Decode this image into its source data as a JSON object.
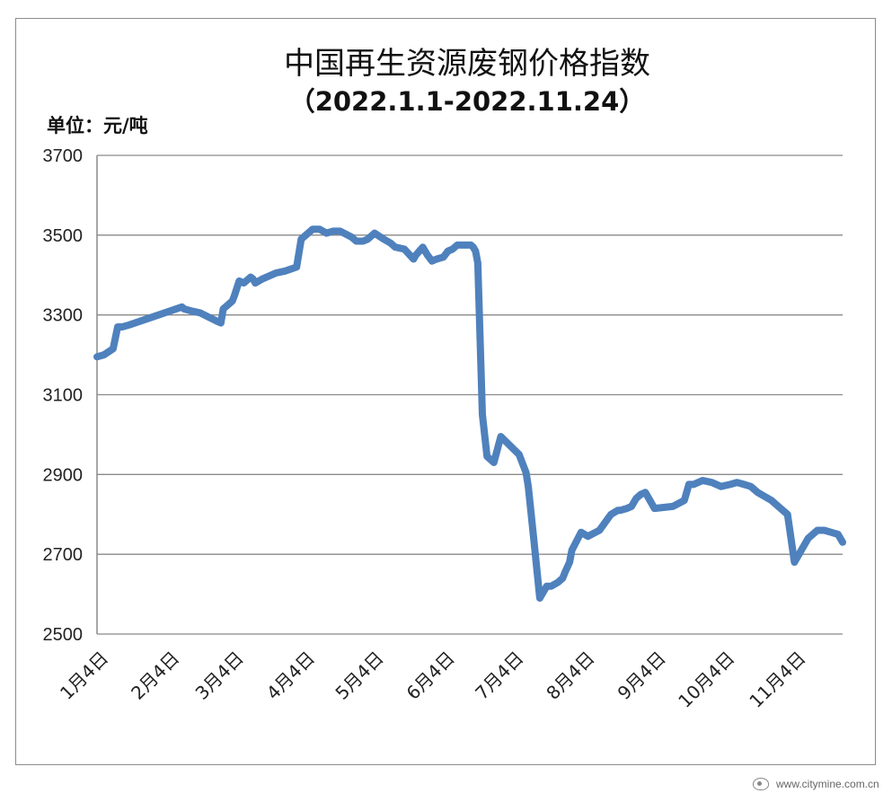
{
  "chart_data": {
    "type": "line",
    "title": "中国再生资源废钢价格指数",
    "subtitle": "（2022.1.1-2022.11.24）",
    "unit_label": "单位：元/吨",
    "ylim": [
      2500,
      3700
    ],
    "yticks": [
      2500,
      2700,
      2900,
      3100,
      3300,
      3500,
      3700
    ],
    "x_tick_labels": [
      "1月4日",
      "2月4日",
      "3月4日",
      "4月4日",
      "5月4日",
      "6月4日",
      "7月4日",
      "8月4日",
      "9月4日",
      "10月4日",
      "11月4日"
    ],
    "x_tick_positions": [
      3,
      34,
      62,
      93,
      123,
      154,
      184,
      215,
      246,
      276,
      307
    ],
    "grid": "horizontal",
    "legend": "none",
    "line_color": "#4f81bd",
    "series": [
      {
        "x": [
          0,
          3,
          7,
          9,
          11,
          14,
          37,
          38,
          41,
          45,
          52,
          54,
          55,
          57,
          59,
          60,
          62,
          64,
          67,
          68,
          69,
          72,
          78,
          82,
          87,
          89,
          94,
          97,
          100,
          103,
          106,
          111,
          113,
          116,
          118,
          121,
          125,
          128,
          130,
          134,
          138,
          139,
          142,
          144,
          146,
          148,
          151,
          153,
          155,
          157,
          160,
          163,
          164,
          165,
          166,
          168,
          170,
          173,
          176,
          184,
          186,
          187,
          188,
          190,
          193,
          196,
          198,
          201,
          203,
          204,
          206,
          207,
          211,
          214,
          219,
          224,
          227,
          228,
          231,
          233,
          235,
          237,
          239,
          243,
          251,
          256,
          258,
          260,
          264,
          268,
          272,
          276,
          279,
          282,
          285,
          288,
          294,
          298,
          301,
          304,
          310,
          314,
          317,
          320,
          323,
          325
        ],
        "values": [
          3195,
          3200,
          3215,
          3270,
          3270,
          3275,
          3320,
          3315,
          3310,
          3305,
          3285,
          3280,
          3315,
          3325,
          3335,
          3350,
          3385,
          3380,
          3395,
          3390,
          3380,
          3390,
          3405,
          3410,
          3420,
          3490,
          3515,
          3515,
          3505,
          3510,
          3510,
          3495,
          3485,
          3485,
          3490,
          3505,
          3490,
          3480,
          3470,
          3465,
          3440,
          3450,
          3470,
          3450,
          3435,
          3440,
          3445,
          3460,
          3465,
          3475,
          3475,
          3475,
          3470,
          3460,
          3430,
          3050,
          2945,
          2930,
          2995,
          2950,
          2920,
          2905,
          2870,
          2760,
          2590,
          2620,
          2620,
          2630,
          2640,
          2655,
          2680,
          2710,
          2755,
          2745,
          2760,
          2800,
          2810,
          2810,
          2815,
          2820,
          2840,
          2850,
          2855,
          2815,
          2820,
          2835,
          2875,
          2875,
          2885,
          2880,
          2870,
          2875,
          2880,
          2875,
          2870,
          2855,
          2835,
          2815,
          2800,
          2680,
          2740,
          2760,
          2760,
          2755,
          2750,
          2730
        ]
      }
    ]
  },
  "watermark": {
    "icon": "watermark-logo-icon",
    "text": "www.citymine.com.cn"
  }
}
